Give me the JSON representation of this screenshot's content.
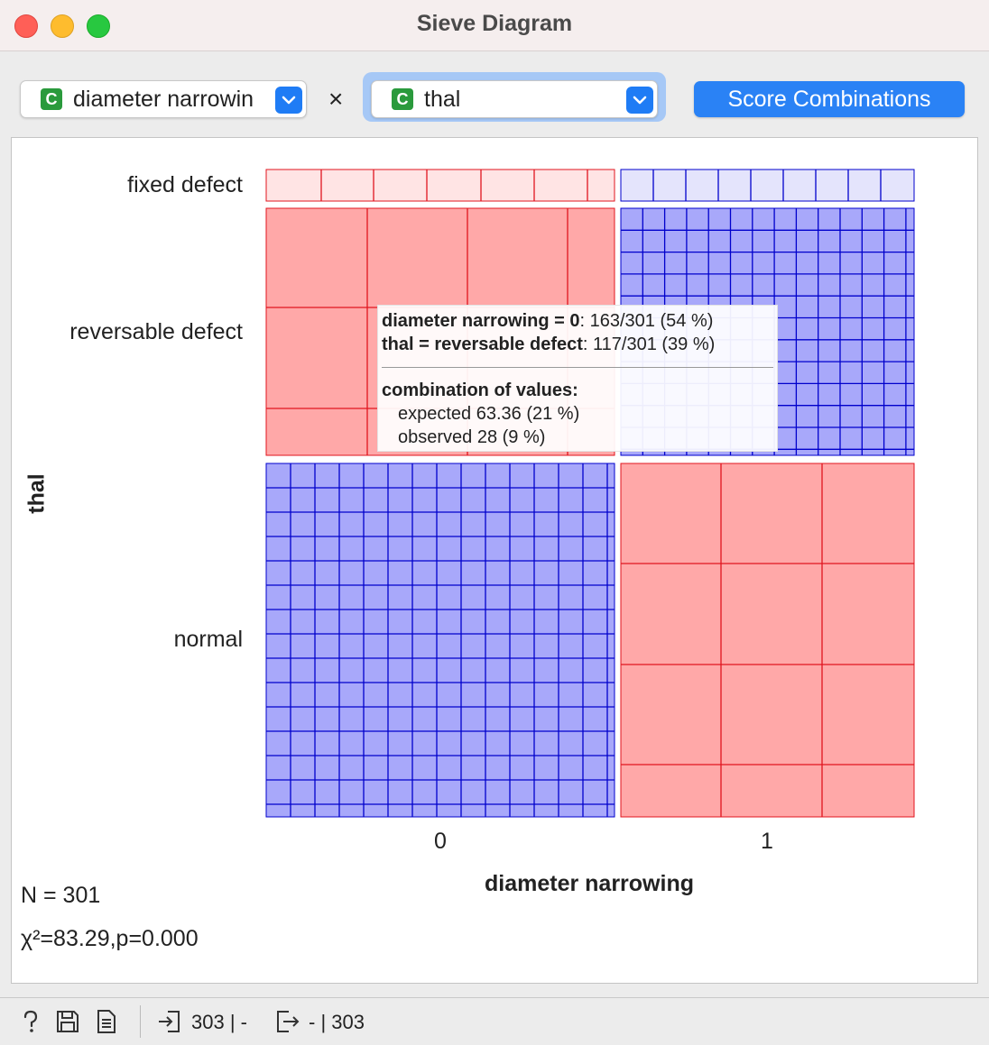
{
  "window": {
    "title": "Sieve Diagram"
  },
  "controls": {
    "attr_x": {
      "type_badge": "C",
      "value": "diameter narrowin"
    },
    "separator": "×",
    "attr_y": {
      "type_badge": "C",
      "value": "thal"
    },
    "score_button": "Score Combinations"
  },
  "plot": {
    "row_labels": [
      "fixed defect",
      "reversable defect",
      "normal"
    ],
    "col_labels": [
      "0",
      "1"
    ],
    "x_axis_label": "diameter narrowing",
    "y_axis_label": "thal",
    "colors": {
      "positive_fill": "#a8a8fa",
      "positive_line": "#0000cc",
      "negative_fill": "#ffa8a8",
      "negative_line": "#e0141e",
      "fixed_pos_fill": "#e4e4fc",
      "fixed_neg_fill": "#ffe4e4"
    }
  },
  "chart_data": {
    "type": "sieve",
    "x_variable": "diameter narrowing",
    "y_variable": "thal",
    "x_categories": [
      "0",
      "1"
    ],
    "y_categories": [
      "fixed defect",
      "reversable defect",
      "normal"
    ],
    "x_marginal_counts": [
      163,
      138
    ],
    "y_marginal_counts": [
      18,
      117,
      166
    ],
    "cells": [
      {
        "x": "0",
        "y": "fixed defect",
        "deviation": "negative"
      },
      {
        "x": "1",
        "y": "fixed defect",
        "deviation": "positive"
      },
      {
        "x": "0",
        "y": "reversable defect",
        "deviation": "negative",
        "expected": 63.36,
        "observed": 28
      },
      {
        "x": "1",
        "y": "reversable defect",
        "deviation": "positive"
      },
      {
        "x": "0",
        "y": "normal",
        "deviation": "positive"
      },
      {
        "x": "1",
        "y": "normal",
        "deviation": "negative"
      }
    ]
  },
  "tooltip": {
    "line1_bold": "diameter narrowing = 0",
    "line1_rest": ": 163/301 (54 %)",
    "line2_bold": "thal = reversable defect",
    "line2_rest": ": 117/301 (39 %)",
    "heading": "combination of values:",
    "expected": "expected 63.36 (21 %)",
    "observed": "observed 28 (9 %)"
  },
  "stats": {
    "n": "N = 301",
    "chi": "χ²=83.29,p=0.000"
  },
  "statusbar": {
    "input_count": "303 | -",
    "output_count": "- | 303"
  }
}
